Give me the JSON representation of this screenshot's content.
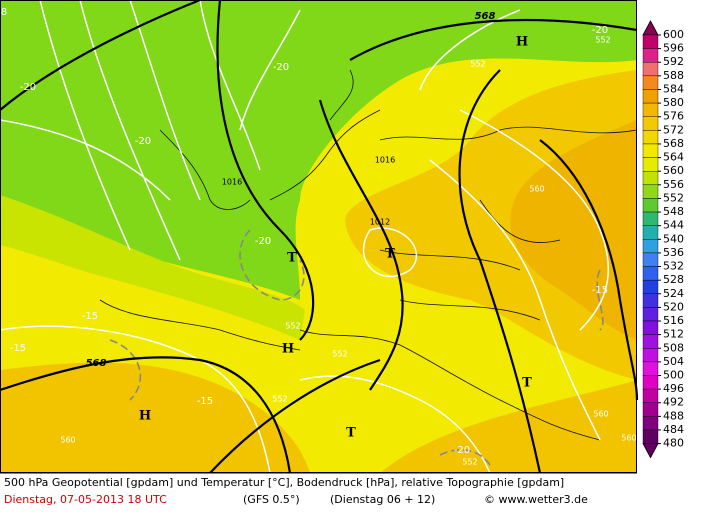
{
  "map": {
    "labels": [
      "568",
      "-20",
      "552",
      "H",
      "552",
      "-20",
      "-20",
      "-20",
      "1016",
      "560",
      "1016",
      "1012",
      "-20",
      "T",
      "T",
      "-15",
      "-15",
      "552",
      "H",
      "-15",
      "552",
      "568",
      "T",
      "H",
      "-15",
      "552",
      "560",
      "T",
      "560",
      "560",
      "-20",
      "552",
      "8"
    ],
    "colorbar": {
      "labels": [
        600,
        596,
        592,
        588,
        584,
        580,
        576,
        572,
        568,
        564,
        560,
        556,
        552,
        548,
        544,
        540,
        536,
        532,
        528,
        524,
        520,
        516,
        512,
        508,
        504,
        500,
        496,
        492,
        488,
        484,
        480
      ]
    }
  },
  "caption": {
    "line1": "500 hPa Geopotential [gpdam] und Temperatur [°C], Bodendruck [hPa], relative Topographie [gpdam]",
    "date": "Dienstag, 07-05-2013   18 UTC",
    "model": "(GFS 0.5°)",
    "run": "(Dienstag 06 + 12)",
    "credit": "© www.wetter3.de"
  }
}
